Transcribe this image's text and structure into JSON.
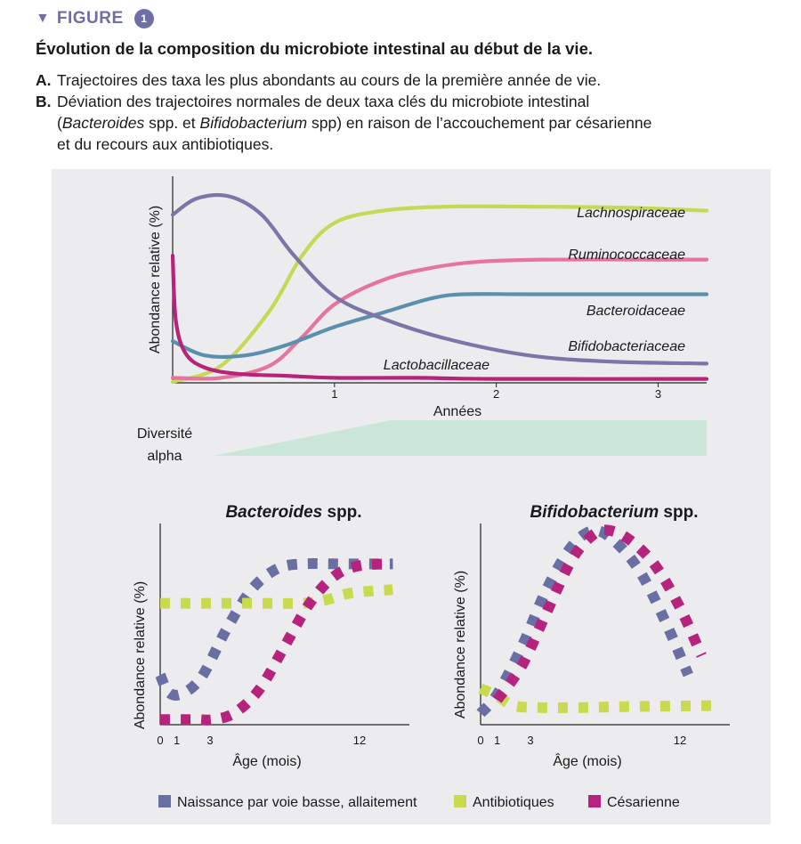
{
  "header": {
    "figure_word": "FIGURE",
    "figure_number": "1",
    "title": "Évolution de la composition du microbiote intestinal au début de la vie.",
    "items": [
      {
        "label": "A.",
        "text": "Trajectoires des taxa les plus abondants au cours de la première année de vie."
      },
      {
        "label": "B.",
        "text_line1": "Déviation des trajectoires normales de deux taxa clés du microbiote intestinal",
        "line2_open": "(",
        "line2_italic1": "Bacteroides",
        "line2_mid": " spp. et ",
        "line2_italic2": "Bifidobacterium",
        "line2_rest": " spp) en raison de l’accouchement par césarienne",
        "text_line3": "et du recours aux antibiotiques."
      }
    ]
  },
  "colors": {
    "accent": "#6f6fa6",
    "lachnospiraceae": "#c7d854",
    "ruminococcaceae": "#e7749c",
    "bacteroidaceae": "#5b90ad",
    "bifidobacteriaceae": "#7a76a8",
    "lactobacillaceae": "#b8237a",
    "vaginal": "#6a6fa3",
    "antibiotics": "#c8da4f",
    "cesarean": "#b5237c",
    "diversity": "#c9e6d8",
    "panel_bg": "#ececef"
  },
  "chart_data": [
    {
      "id": "A",
      "panel_label": "A",
      "type": "line",
      "ylabel": "Abondance relative (%)",
      "xlabel": "Années",
      "xlim": [
        0,
        3.3
      ],
      "ylim": [
        0,
        100
      ],
      "xticks": [
        1,
        2,
        3
      ],
      "series": [
        {
          "name": "Lachnospiraceae",
          "color_key": "lachnospiraceae",
          "x": [
            0,
            0.3,
            0.6,
            0.8,
            1.0,
            1.3,
            1.7,
            2.2,
            2.8,
            3.3
          ],
          "y": [
            0,
            8,
            35,
            62,
            78,
            84,
            86,
            86,
            85.5,
            84
          ]
        },
        {
          "name": "Ruminococcaceae",
          "color_key": "ruminococcaceae",
          "x": [
            0,
            0.3,
            0.6,
            0.8,
            1.0,
            1.3,
            1.6,
            1.9,
            2.3,
            3.0,
            3.3
          ],
          "y": [
            2,
            2,
            8,
            22,
            38,
            50,
            56,
            59,
            60,
            60,
            60
          ]
        },
        {
          "name": "Bacteroidaceae",
          "color_key": "bacteroidaceae",
          "x": [
            0,
            0.2,
            0.45,
            0.7,
            1.0,
            1.3,
            1.6,
            1.8,
            2.2,
            3.0,
            3.3
          ],
          "y": [
            20,
            13,
            13,
            18,
            27,
            34,
            41,
            43,
            43,
            43,
            43
          ]
        },
        {
          "name": "Bifidobacteriaceae",
          "color_key": "bifidobacteriaceae",
          "x": [
            0,
            0.15,
            0.35,
            0.55,
            0.75,
            1.0,
            1.3,
            1.7,
            2.2,
            2.7,
            3.3
          ],
          "y": [
            82,
            90,
            91,
            82,
            62,
            42,
            31,
            21,
            13,
            10,
            9
          ]
        },
        {
          "name": "Lactobacillaceae",
          "color_key": "lactobacillaceae",
          "x": [
            0,
            0.02,
            0.08,
            0.2,
            0.4,
            0.7,
            1.0,
            1.5,
            2.0,
            3.3
          ],
          "y": [
            62,
            30,
            14,
            7,
            4,
            3,
            2,
            2,
            1.5,
            1.5
          ]
        }
      ],
      "series_label_positions": [
        "top",
        "mid-upper",
        "mid",
        "mid-lower",
        "bottom"
      ],
      "diversity": {
        "label_line1": "Diversité",
        "label_line2": "alpha",
        "ramp_start_year": 0.25,
        "plateau_year": 1.35,
        "end_year": 3.3
      }
    },
    {
      "id": "B1",
      "panel_label": "B",
      "type": "line",
      "title_italic": "Bacteroides",
      "title_rest": " spp.",
      "ylabel": "Abondance relative (%)",
      "xlabel": "Âge (mois)",
      "xticks": [
        0,
        1,
        3,
        12
      ],
      "xlim": [
        0,
        15
      ],
      "ylim": [
        0,
        100
      ],
      "series": [
        {
          "name": "Naissance par voie basse, allaitement",
          "color_key": "vaginal",
          "x": [
            0,
            0.5,
            1.3,
            2.5,
            4,
            5.5,
            7,
            8.5,
            11,
            14
          ],
          "y": [
            28,
            18,
            17,
            27,
            55,
            78,
            90,
            93,
            93,
            93
          ]
        },
        {
          "name": "Antibiotiques",
          "color_key": "antibiotics",
          "x": [
            0,
            3,
            6,
            8.5,
            10,
            11.5,
            14
          ],
          "y": [
            70,
            70,
            70,
            70,
            72,
            76,
            78
          ]
        },
        {
          "name": "Césarienne",
          "color_key": "cesarean",
          "x": [
            0,
            2,
            3.2,
            4.5,
            6,
            7.5,
            9,
            10.5,
            12,
            14
          ],
          "y": [
            2,
            2,
            2,
            6,
            20,
            45,
            70,
            86,
            92,
            93
          ]
        }
      ]
    },
    {
      "id": "B2",
      "type": "line",
      "title_italic": "Bifidobacterium",
      "title_rest": " spp.",
      "ylabel": "Abondance relative (%)",
      "xlabel": "Âge (mois)",
      "xticks": [
        0,
        1,
        3,
        12
      ],
      "xlim": [
        0,
        15
      ],
      "ylim": [
        0,
        100
      ],
      "series": [
        {
          "name": "Naissance par voie basse, allaitement",
          "color_key": "vaginal",
          "x": [
            0,
            1,
            2.5,
            4,
            5.5,
            6.8,
            8,
            9.5,
            11,
            12.5
          ],
          "y": [
            5,
            15,
            40,
            70,
            92,
            100,
            95,
            80,
            55,
            25
          ]
        },
        {
          "name": "Antibiotiques",
          "color_key": "antibiotics",
          "x": [
            0,
            1,
            2,
            3.5,
            6,
            9,
            14
          ],
          "y": [
            18,
            14,
            9,
            8,
            8,
            8.5,
            9
          ]
        },
        {
          "name": "Césarienne",
          "color_key": "cesarean",
          "x": [
            1,
            2.5,
            4,
            5.5,
            6.8,
            7.8,
            9,
            10.5,
            12,
            13.3
          ],
          "y": [
            12,
            30,
            58,
            85,
            98,
            100,
            95,
            82,
            60,
            35
          ]
        }
      ]
    }
  ],
  "legend": [
    {
      "label": "Naissance par voie basse, allaitement",
      "color_key": "vaginal"
    },
    {
      "label": "Antibiotiques",
      "color_key": "antibiotics"
    },
    {
      "label": "Césarienne",
      "color_key": "cesarean"
    }
  ]
}
